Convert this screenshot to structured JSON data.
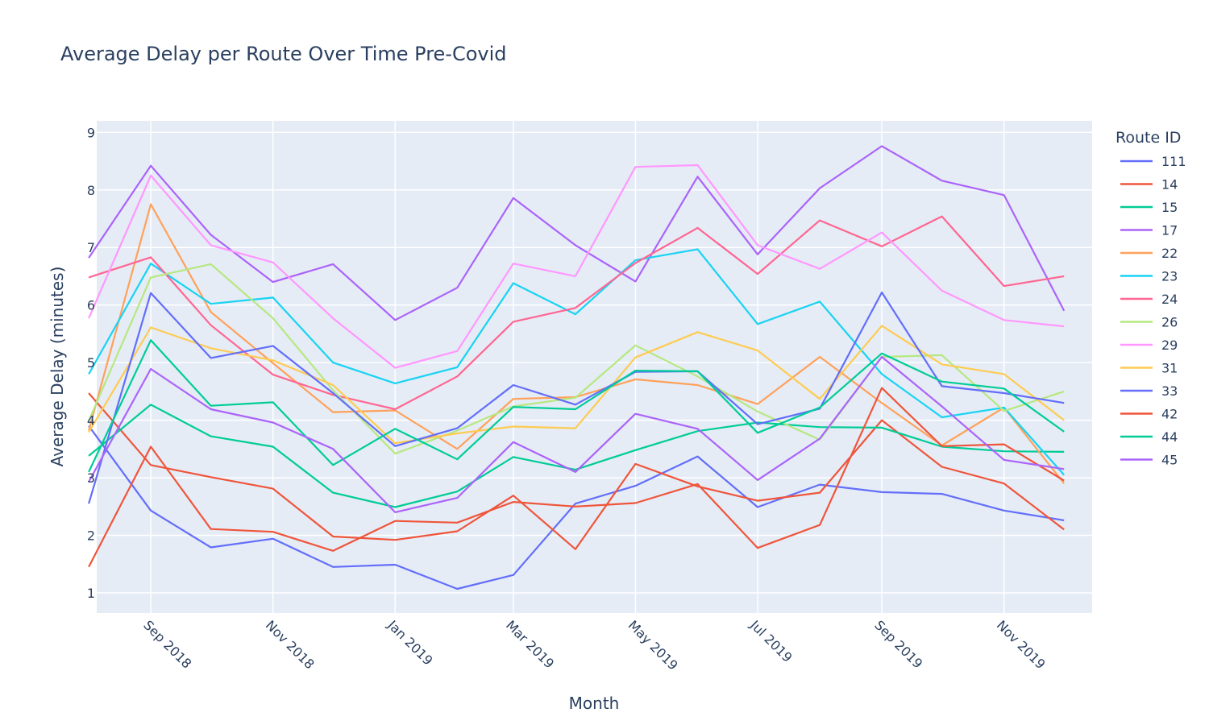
{
  "chart_data": {
    "type": "line",
    "title": "Average Delay per Route Over Time Pre-Covid",
    "xlabel": "Month",
    "ylabel": "Average Delay (minutes)",
    "legend_title": "Route ID",
    "legend_position": "right",
    "grid": true,
    "x": [
      "2018-08",
      "2018-09",
      "2018-10",
      "2018-11",
      "2018-12",
      "2019-01",
      "2019-02",
      "2019-03",
      "2019-04",
      "2019-05",
      "2019-06",
      "2019-07",
      "2019-08",
      "2019-09",
      "2019-10",
      "2019-11",
      "2019-12"
    ],
    "x_ticks": [
      {
        "at": "2018-09",
        "label": "Sep 2018"
      },
      {
        "at": "2018-11",
        "label": "Nov 2018"
      },
      {
        "at": "2019-01",
        "label": "Jan 2019"
      },
      {
        "at": "2019-03",
        "label": "Mar 2019"
      },
      {
        "at": "2019-05",
        "label": "May 2019"
      },
      {
        "at": "2019-07",
        "label": "Jul 2019"
      },
      {
        "at": "2019-09",
        "label": "Sep 2019"
      },
      {
        "at": "2019-11",
        "label": "Nov 2019"
      }
    ],
    "xlim": [
      "2018-08-05",
      "2019-12-15"
    ],
    "ylim": [
      0.65,
      9.2
    ],
    "y_ticks": [
      1,
      2,
      3,
      4,
      5,
      6,
      7,
      8,
      9
    ],
    "series": [
      {
        "name": "111",
        "color": "#636efa",
        "values": [
          3.9,
          2.43,
          1.79,
          1.94,
          1.45,
          1.49,
          1.07,
          1.31,
          2.55,
          2.86,
          3.37,
          2.49,
          2.88,
          2.75,
          2.72,
          2.43,
          2.26
        ]
      },
      {
        "name": "14",
        "color": "#ef553b",
        "values": [
          4.47,
          3.22,
          3.01,
          2.81,
          1.98,
          1.92,
          2.07,
          2.69,
          1.76,
          3.24,
          2.85,
          2.6,
          2.74,
          4.0,
          3.19,
          2.9,
          2.1
        ]
      },
      {
        "name": "15",
        "color": "#00cc96",
        "values": [
          3.38,
          4.27,
          3.72,
          3.54,
          2.74,
          2.49,
          2.76,
          3.36,
          3.14,
          3.48,
          3.81,
          3.96,
          3.88,
          3.87,
          3.54,
          3.46,
          3.45
        ]
      },
      {
        "name": "17",
        "color": "#ab63fa",
        "values": [
          6.82,
          8.42,
          7.22,
          6.4,
          6.71,
          5.74,
          6.3,
          7.86,
          7.04,
          6.41,
          8.23,
          6.88,
          8.03,
          8.76,
          8.16,
          7.91,
          5.9
        ]
      },
      {
        "name": "22",
        "color": "#ffa15a",
        "values": [
          3.82,
          7.75,
          5.88,
          4.99,
          4.14,
          4.17,
          3.5,
          4.37,
          4.4,
          4.71,
          4.61,
          4.28,
          5.1,
          4.3,
          3.56,
          4.22,
          2.9
        ]
      },
      {
        "name": "23",
        "color": "#19d3f3",
        "values": [
          4.8,
          6.72,
          6.02,
          6.13,
          5.0,
          4.64,
          4.92,
          6.38,
          5.84,
          6.78,
          6.97,
          5.67,
          6.06,
          4.8,
          4.05,
          4.22,
          3.05
        ]
      },
      {
        "name": "24",
        "color": "#ff6692",
        "values": [
          6.48,
          6.83,
          5.65,
          4.79,
          4.44,
          4.19,
          4.76,
          5.71,
          5.95,
          6.73,
          7.34,
          6.54,
          7.47,
          7.02,
          7.54,
          6.33,
          6.5
        ]
      },
      {
        "name": "26",
        "color": "#b6e880",
        "values": [
          3.99,
          6.48,
          6.71,
          5.77,
          4.52,
          3.42,
          3.82,
          4.24,
          4.39,
          5.3,
          4.76,
          4.15,
          3.66,
          5.1,
          5.13,
          4.16,
          4.5
        ]
      },
      {
        "name": "29",
        "color": "#ff97ff",
        "values": [
          5.77,
          8.25,
          7.04,
          6.74,
          5.77,
          4.91,
          5.2,
          6.72,
          6.5,
          8.4,
          8.43,
          7.04,
          6.63,
          7.26,
          6.25,
          5.74,
          5.63
        ]
      },
      {
        "name": "31",
        "color": "#fecb52",
        "values": [
          3.79,
          5.61,
          5.25,
          5.04,
          4.61,
          3.6,
          3.77,
          3.89,
          3.86,
          5.09,
          5.53,
          5.21,
          4.37,
          5.64,
          4.97,
          4.8,
          4.0
        ]
      },
      {
        "name": "33",
        "color": "#636efa",
        "values": [
          2.55,
          6.21,
          5.08,
          5.29,
          4.47,
          3.55,
          3.86,
          4.61,
          4.27,
          4.84,
          4.85,
          3.93,
          4.2,
          6.22,
          4.59,
          4.47,
          4.3
        ]
      },
      {
        "name": "42",
        "color": "#ef553b",
        "values": [
          1.45,
          3.54,
          2.11,
          2.06,
          1.73,
          2.25,
          2.22,
          2.58,
          2.5,
          2.56,
          2.89,
          1.78,
          2.18,
          4.56,
          3.55,
          3.58,
          2.95
        ]
      },
      {
        "name": "44",
        "color": "#00cc96",
        "values": [
          3.1,
          5.39,
          4.25,
          4.31,
          3.22,
          3.85,
          3.32,
          4.23,
          4.19,
          4.86,
          4.85,
          3.78,
          4.22,
          5.16,
          4.67,
          4.55,
          3.8
        ]
      },
      {
        "name": "45",
        "color": "#ab63fa",
        "values": [
          2.93,
          4.89,
          4.19,
          3.96,
          3.5,
          2.4,
          2.65,
          3.62,
          3.1,
          4.11,
          3.85,
          2.96,
          3.68,
          5.1,
          4.24,
          3.31,
          3.15
        ]
      }
    ]
  }
}
